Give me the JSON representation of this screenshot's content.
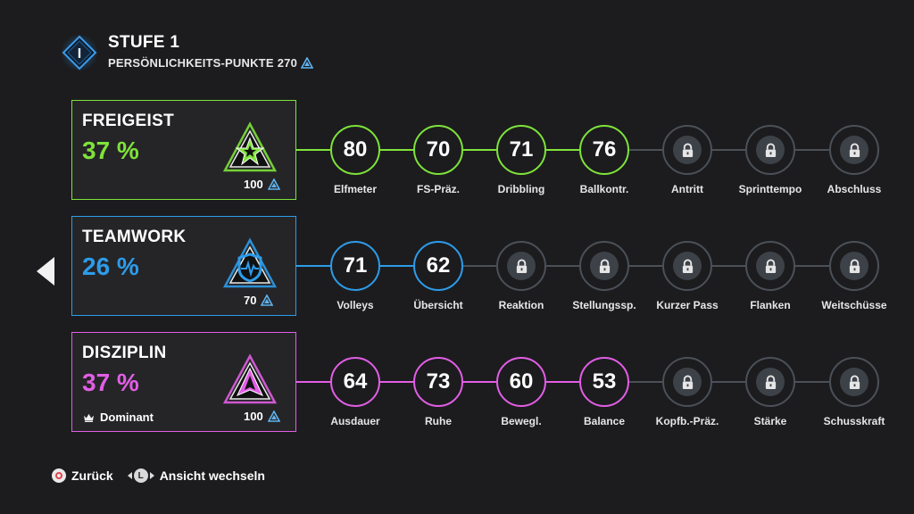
{
  "header": {
    "title": "STUFE 1",
    "points_label": "PERSÖNLICHKEITS-PUNKTE",
    "points_value": "270",
    "emblem_glyph": "I"
  },
  "rows": [
    {
      "name": "FREIGEIST",
      "percent": "37 %",
      "color": "#7ee33a",
      "badge_icon": "star-badge-icon",
      "cost": "100",
      "trait": "",
      "nodes": [
        {
          "value": "80",
          "label": "Elfmeter",
          "locked": false
        },
        {
          "value": "70",
          "label": "FS-Präz.",
          "locked": false
        },
        {
          "value": "71",
          "label": "Dribbling",
          "locked": false
        },
        {
          "value": "76",
          "label": "Ballkontr.",
          "locked": false
        },
        {
          "value": "",
          "label": "Antritt",
          "locked": true
        },
        {
          "value": "",
          "label": "Sprinttempo",
          "locked": true
        },
        {
          "value": "",
          "label": "Abschluss",
          "locked": true
        }
      ]
    },
    {
      "name": "TEAMWORK",
      "percent": "26 %",
      "color": "#2d9cea",
      "badge_icon": "shield-heartbeat-badge-icon",
      "cost": "70",
      "trait": "",
      "nodes": [
        {
          "value": "71",
          "label": "Volleys",
          "locked": false
        },
        {
          "value": "62",
          "label": "Übersicht",
          "locked": false
        },
        {
          "value": "",
          "label": "Reaktion",
          "locked": true
        },
        {
          "value": "",
          "label": "Stellungssp.",
          "locked": true
        },
        {
          "value": "",
          "label": "Kurzer Pass",
          "locked": true
        },
        {
          "value": "",
          "label": "Flanken",
          "locked": true
        },
        {
          "value": "",
          "label": "Weitschüsse",
          "locked": true
        }
      ]
    },
    {
      "name": "DISZIPLIN",
      "percent": "37 %",
      "color": "#e25ee6",
      "badge_icon": "arrow-badge-icon",
      "cost": "100",
      "trait": "Dominant",
      "nodes": [
        {
          "value": "64",
          "label": "Ausdauer",
          "locked": false
        },
        {
          "value": "73",
          "label": "Ruhe",
          "locked": false
        },
        {
          "value": "60",
          "label": "Bewegl.",
          "locked": false
        },
        {
          "value": "53",
          "label": "Balance",
          "locked": false
        },
        {
          "value": "",
          "label": "Kopfb.-Präz.",
          "locked": true
        },
        {
          "value": "",
          "label": "Stärke",
          "locked": true
        },
        {
          "value": "",
          "label": "Schusskraft",
          "locked": true
        }
      ]
    }
  ],
  "footer": {
    "back_label": "Zurück",
    "view_label": "Ansicht wechseln",
    "view_button_glyph": "L"
  },
  "colors": {
    "background": "#1c1c1e",
    "locked_ring": "#4b5058",
    "points_icon": "#5fb3f0"
  }
}
